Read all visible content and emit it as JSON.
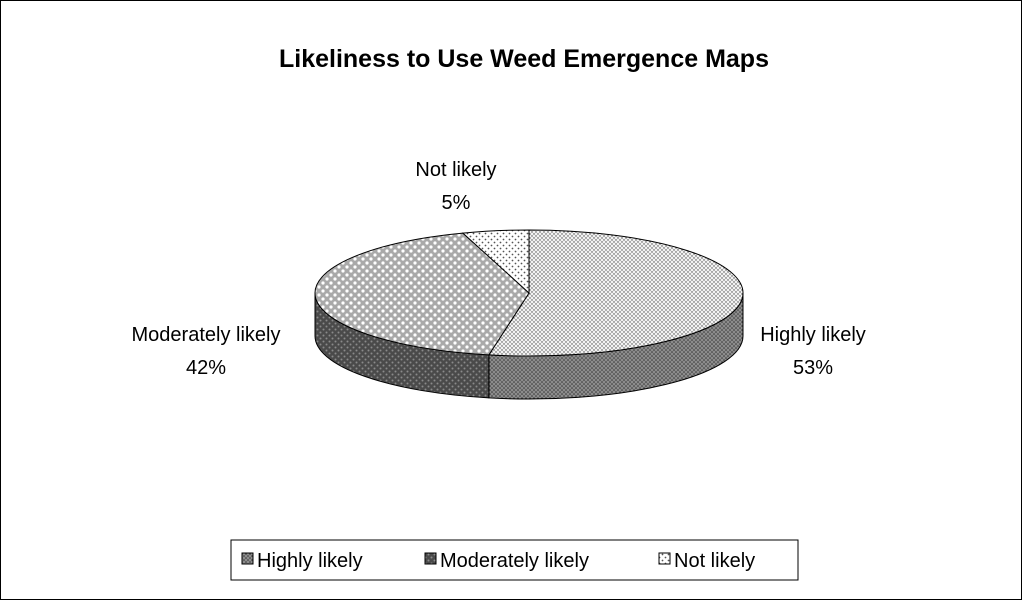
{
  "chart_data": {
    "type": "pie",
    "style": "3d",
    "title": "Likeliness to Use Weed Emergence Maps",
    "legend_position": "bottom",
    "slices": [
      {
        "label": "Highly likely",
        "value": 53,
        "value_label": "53%",
        "pattern": "fine-dots",
        "color": "#7a7a7a"
      },
      {
        "label": "Moderately likely",
        "value": 42,
        "value_label": "42%",
        "pattern": "diamond-dots",
        "color": "#5a5a5a"
      },
      {
        "label": "Not likely",
        "value": 5,
        "value_label": "5%",
        "pattern": "sparse-dots",
        "color": "#9a9a9a"
      }
    ],
    "legend": [
      "Highly likely",
      "Moderately likely",
      "Not likely"
    ]
  }
}
